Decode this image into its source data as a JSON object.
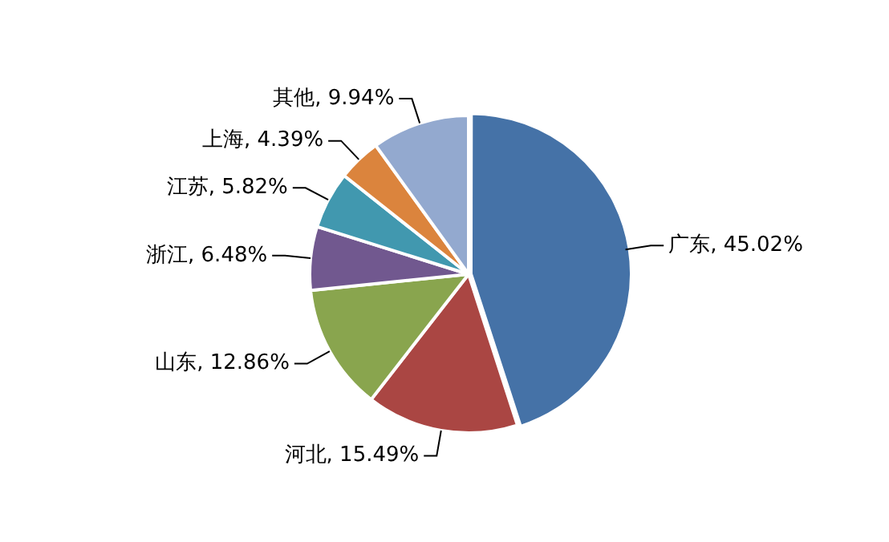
{
  "chart_data": {
    "type": "pie",
    "categories": [
      "广东",
      "河北",
      "山东",
      "浙江",
      "江苏",
      "上海",
      "其他"
    ],
    "values": [
      45.02,
      15.49,
      12.86,
      6.48,
      5.82,
      4.39,
      9.94
    ],
    "value_labels": [
      "45.02%",
      "15.49%",
      "12.86%",
      "6.48%",
      "5.82%",
      "4.39%",
      "9.94%"
    ],
    "colors": [
      "#4572a7",
      "#aa4643",
      "#89a54e",
      "#71588f",
      "#4198af",
      "#db843d",
      "#93a9cf"
    ],
    "legend": false
  }
}
